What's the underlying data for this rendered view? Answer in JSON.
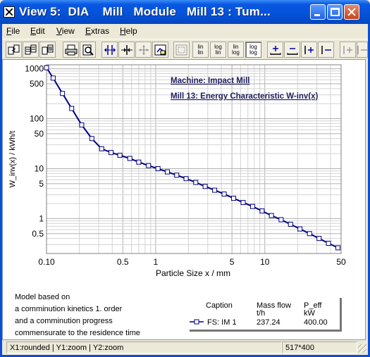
{
  "window": {
    "title": "View 5:  DIA    Mill   Module   Mill 13 : Tum...",
    "min_label": "Minimize",
    "max_label": "Maximize",
    "close_label": "Close"
  },
  "menu": [
    {
      "label": "File",
      "key": "F",
      "rest": "ile"
    },
    {
      "label": "Edit",
      "key": "E",
      "rest": "dit"
    },
    {
      "label": "View",
      "key": "V",
      "rest": "iew"
    },
    {
      "label": "Extras",
      "key": "E",
      "rest": "xtras"
    },
    {
      "label": "Help",
      "key": "H",
      "rest": "elp"
    }
  ],
  "toolbar": {
    "buttons": [
      {
        "icon": "copy-page-icon",
        "state": "normal"
      },
      {
        "icon": "copy-data-icon",
        "state": "normal"
      },
      {
        "icon": "copy-table-icon",
        "state": "normal"
      },
      {
        "icon": "print-icon",
        "state": "normal"
      },
      {
        "icon": "print-preview-icon",
        "state": "normal"
      },
      {
        "icon": "expand-horizontal-icon",
        "state": "normal"
      },
      {
        "icon": "compress-horizontal-icon",
        "state": "normal"
      },
      {
        "icon": "move-icon",
        "state": "disabled"
      },
      {
        "icon": "zoom-reset-icon",
        "state": "normal"
      },
      {
        "icon": "zoom-window-icon",
        "state": "disabled"
      },
      {
        "icon": "lin-lin-icon",
        "state": "normal",
        "top": "lin",
        "bottom": "lin"
      },
      {
        "icon": "log-lin-icon",
        "state": "normal",
        "top": "log",
        "bottom": "lin"
      },
      {
        "icon": "lin-log-icon",
        "state": "normal",
        "top": "lin",
        "bottom": "log"
      },
      {
        "icon": "log-log-icon",
        "state": "pressed",
        "top": "log",
        "bottom": "log"
      },
      {
        "icon": "add-cursor-icon",
        "state": "normal"
      },
      {
        "icon": "remove-cursor-icon",
        "state": "normal"
      },
      {
        "icon": "add-marker-icon",
        "state": "normal"
      },
      {
        "icon": "marker-left-icon",
        "state": "normal"
      },
      {
        "icon": "marker-add-disabled-icon",
        "state": "disabled"
      },
      {
        "icon": "marker-remove-disabled-icon",
        "state": "disabled"
      }
    ]
  },
  "chart_data": {
    "type": "line",
    "xlabel": "Particle Size x / mm",
    "ylabel": "W_inv(x) / kWh/t",
    "xscale": "log",
    "yscale": "log",
    "xlim": [
      0.1,
      50
    ],
    "ylim": [
      0.2,
      1200
    ],
    "grid": true,
    "xticks": [
      {
        "value": 0.1,
        "label": "0.10"
      },
      {
        "value": 0.5,
        "label": "0.5"
      },
      {
        "value": 1,
        "label": "1"
      },
      {
        "value": 5,
        "label": "5"
      },
      {
        "value": 10,
        "label": "10"
      },
      {
        "value": 50,
        "label": "50"
      }
    ],
    "yticks": [
      {
        "value": 1000,
        "label": "1000"
      },
      {
        "value": 500,
        "label": "500"
      },
      {
        "value": 100,
        "label": "100"
      },
      {
        "value": 50,
        "label": "50"
      },
      {
        "value": 10,
        "label": "10"
      },
      {
        "value": 5,
        "label": "5"
      },
      {
        "value": 1,
        "label": "1"
      },
      {
        "value": 0.5,
        "label": "0.5"
      }
    ],
    "annotations": [
      "Machine: Impact Mill",
      "Mill 13: Energy Characteristic W-inv(x)"
    ],
    "series": [
      {
        "marker": "square",
        "color": "#000080",
        "x": [
          0.1,
          0.115,
          0.14,
          0.17,
          0.21,
          0.26,
          0.32,
          0.39,
          0.47,
          0.58,
          0.7,
          0.86,
          1.05,
          1.28,
          1.56,
          1.9,
          2.33,
          2.84,
          3.47,
          4.24,
          5.18,
          6.33,
          7.73,
          9.44,
          11.5,
          14.1,
          17.2,
          21.0,
          25.7,
          31.4,
          38.3,
          46.8
        ],
        "y": [
          1050,
          650,
          320,
          160,
          75,
          40,
          25,
          21,
          18.5,
          16,
          13.5,
          11.5,
          10,
          8.6,
          7.4,
          6.3,
          5.3,
          4.4,
          3.7,
          3.1,
          2.55,
          2.1,
          1.75,
          1.42,
          1.15,
          0.95,
          0.77,
          0.62,
          0.5,
          0.4,
          0.32,
          0.26
        ]
      }
    ]
  },
  "model_text": {
    "line1": "Model based on",
    "line2": "a comminution kinetics 1. order",
    "line3": "and a comminution progress",
    "line4": "commensurate to the residence time"
  },
  "legend": {
    "h_caption": "Caption",
    "h_mass": "Mass flow",
    "h_mass_unit": "t/h",
    "h_peff": "P_eff",
    "h_peff_unit": "kW",
    "row_caption": "FS:   IM  1",
    "row_mass": "237.24",
    "row_peff": "400.00"
  },
  "status": {
    "left": "X1:rounded | Y1:zoom | Y2:zoom",
    "right": "517*400"
  }
}
